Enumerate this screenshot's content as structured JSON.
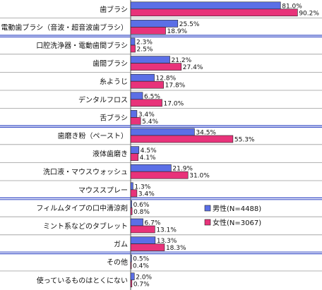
{
  "chart_data": {
    "type": "bar",
    "orientation": "horizontal",
    "categories": [
      "歯ブラシ",
      "電動歯ブラシ（音波・超音波歯ブラシ）",
      "口腔洗浄器・電動歯間ブラシ",
      "歯間ブラシ",
      "糸ようじ",
      "デンタルフロス",
      "舌ブラシ",
      "歯磨き粉（ペースト）",
      "液体歯磨き",
      "洗口液・マウスウォッシュ",
      "マウススプレー",
      "フィルムタイプの口中清涼剤",
      "ミント系などのタブレット",
      "ガム",
      "その他",
      "使っているものはとくにない"
    ],
    "series": [
      {
        "name": "男性(N=4488)",
        "color": "#5b6fe6",
        "values": [
          81.0,
          25.5,
          2.3,
          21.2,
          12.8,
          6.5,
          3.4,
          34.5,
          4.5,
          21.9,
          1.3,
          0.6,
          6.7,
          13.3,
          0.5,
          2.0
        ],
        "labels": [
          "81.0%",
          "25.5%",
          "2.3%",
          "21.2%",
          "12.8%",
          "6.5%",
          "3.4%",
          "34.5%",
          "4.5%",
          "21.9%",
          "1.3%",
          "0.6%",
          "6.7%",
          "13.3%",
          "0.5%",
          "2.0%"
        ]
      },
      {
        "name": "女性(N=3067)",
        "color": "#e8337a",
        "values": [
          90.2,
          18.9,
          2.5,
          27.4,
          17.8,
          17.0,
          5.4,
          55.3,
          4.1,
          31.0,
          3.4,
          0.8,
          13.1,
          18.3,
          0.4,
          0.7
        ],
        "labels": [
          "90.2%",
          "18.9%",
          "2.5%",
          "27.4%",
          "17.8%",
          "17.0%",
          "5.4%",
          "55.3%",
          "4.1%",
          "31.0%",
          "3.4%",
          "0.8%",
          "13.1%",
          "18.3%",
          "0.4%",
          "0.7%"
        ]
      }
    ],
    "xlim": [
      0,
      100
    ],
    "group_separators_after": [
      1,
      6,
      10,
      13
    ],
    "legend_position": "right-lower",
    "grid": false
  },
  "colors": {
    "male": "#5b6fe6",
    "female": "#e8337a",
    "separator": "#3c50c8",
    "row_line": "#9a9a9a",
    "axis": "#555555"
  }
}
